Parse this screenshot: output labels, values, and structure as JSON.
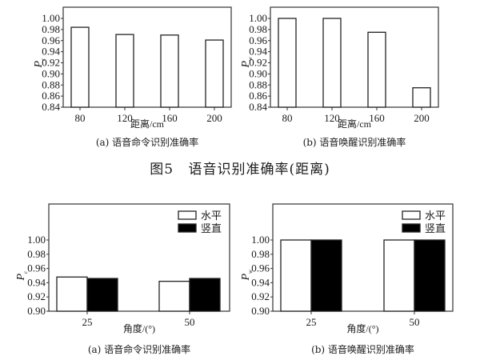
{
  "figure5": {
    "title_num": "图5",
    "title_text": "语音识别准确率(距离)"
  },
  "chart_data": [
    {
      "id": "top-a",
      "type": "bar",
      "title": "(a) 语音命令识别准确率",
      "xlabel": "距离/cm",
      "ylabel": "P",
      "ylabel_sub": "c",
      "categories": [
        "80",
        "120",
        "160",
        "200"
      ],
      "values": [
        0.984,
        0.971,
        0.97,
        0.961
      ],
      "ylim": [
        0.84,
        1.02
      ],
      "yticks": [
        "0.84",
        "0.86",
        "0.88",
        "0.90",
        "0.92",
        "0.94",
        "0.96",
        "0.98",
        "1.00"
      ],
      "grid": false,
      "bar_color": "#ffffff"
    },
    {
      "id": "top-b",
      "type": "bar",
      "title": "(b) 语音唤醒识别准确率",
      "xlabel": "距离/cm",
      "ylabel": "P",
      "ylabel_sub": "w",
      "categories": [
        "80",
        "120",
        "160",
        "200"
      ],
      "values": [
        1.0,
        1.0,
        0.975,
        0.875
      ],
      "ylim": [
        0.84,
        1.02
      ],
      "yticks": [
        "0.84",
        "0.86",
        "0.88",
        "0.90",
        "0.92",
        "0.94",
        "0.96",
        "0.98",
        "1.00"
      ],
      "grid": false,
      "bar_color": "#ffffff"
    },
    {
      "id": "bottom-a",
      "type": "bar",
      "title": "(a) 语音命令识别准确率",
      "xlabel": "角度/(°)",
      "ylabel": "P",
      "ylabel_sub": "c",
      "categories": [
        "25",
        "50"
      ],
      "series": [
        {
          "name": "水平",
          "values": [
            0.948,
            0.942
          ],
          "color": "#ffffff"
        },
        {
          "name": "竖直",
          "values": [
            0.946,
            0.946
          ],
          "color": "#000000"
        }
      ],
      "ylim": [
        0.9,
        1.05
      ],
      "yticks": [
        "0.90",
        "0.92",
        "0.94",
        "0.96",
        "0.98",
        "1.00"
      ],
      "grid": false,
      "legend_position": "upper right"
    },
    {
      "id": "bottom-b",
      "type": "bar",
      "title": "(b) 语音唤醒识别准确率",
      "xlabel": "角度/(°)",
      "ylabel": "P",
      "ylabel_sub": "w",
      "categories": [
        "25",
        "50"
      ],
      "series": [
        {
          "name": "水平",
          "values": [
            1.0,
            1.0
          ],
          "color": "#ffffff"
        },
        {
          "name": "竖直",
          "values": [
            1.0,
            1.0
          ],
          "color": "#000000"
        }
      ],
      "ylim": [
        0.9,
        1.05
      ],
      "yticks": [
        "0.90",
        "0.92",
        "0.94",
        "0.96",
        "0.98",
        "1.00"
      ],
      "grid": false,
      "legend_position": "upper right"
    }
  ]
}
